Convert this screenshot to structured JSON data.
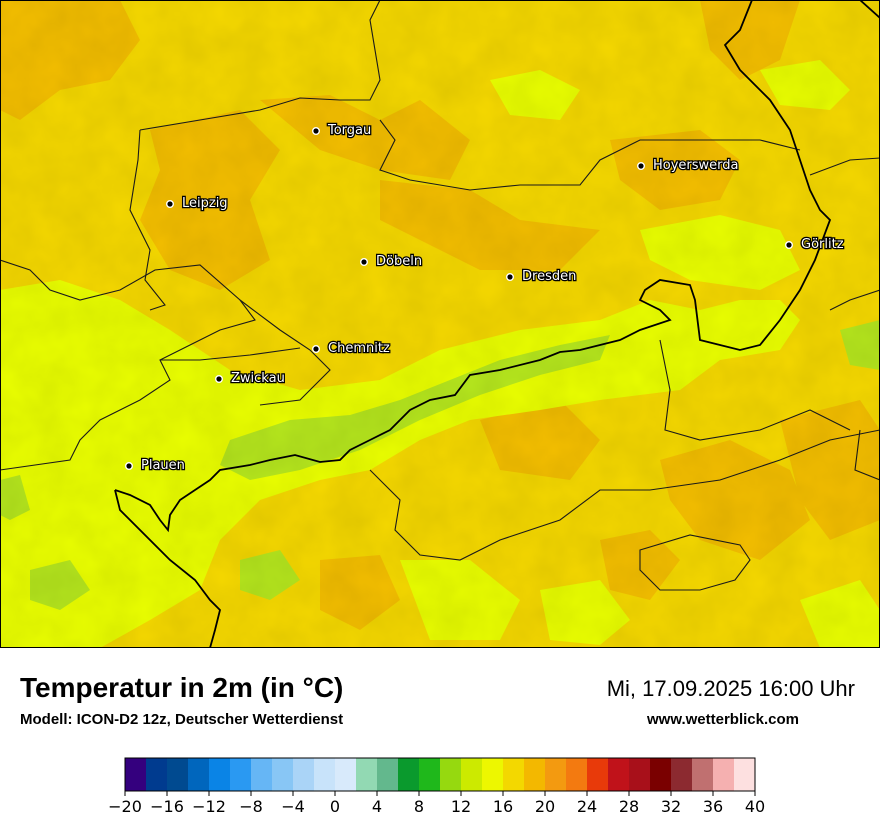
{
  "header": {
    "title": "Temperatur in 2m (in °C)",
    "model": "Modell: ICON-D2 12z, Deutscher Wetterdienst",
    "datetime": "Mi, 17.09.2025 16:00 Uhr",
    "website": "www.wetterblick.com"
  },
  "map": {
    "cities": [
      {
        "name": "Torgau"
      },
      {
        "name": "Hoyerswerda"
      },
      {
        "name": "Leipzig"
      },
      {
        "name": "Görlitz"
      },
      {
        "name": "Döbeln"
      },
      {
        "name": "Dresden"
      },
      {
        "name": "Chemnitz"
      },
      {
        "name": "Zwickau"
      },
      {
        "name": "Plauen"
      }
    ],
    "colors": {
      "dominant": "#f5d800",
      "warm": "#f3be00",
      "cool": "#eaff00",
      "coolest": "#b5e61d"
    }
  },
  "legend": {
    "min": -20,
    "max": 40,
    "ticks": [
      "−20",
      "−16",
      "−12",
      "−8",
      "−4",
      "0",
      "4",
      "8",
      "12",
      "16",
      "20",
      "24",
      "28",
      "32",
      "36",
      "40"
    ],
    "colors": [
      "#34007e",
      "#003b8f",
      "#004a90",
      "#0066bd",
      "#0a84e6",
      "#2a99f2",
      "#66b6f5",
      "#88c6f5",
      "#aad4f7",
      "#c8e3fa",
      "#d8eafb",
      "#92d9b3",
      "#63b88d",
      "#0a9a2d",
      "#1fb81b",
      "#96d90f",
      "#ccea00",
      "#edf700",
      "#f3d800",
      "#f3b800",
      "#f39a10",
      "#f37a10",
      "#e83a0a",
      "#c0121a",
      "#a8101a",
      "#7a0000",
      "#8c2a30",
      "#c07070",
      "#f5b0b0",
      "#fde0e0"
    ]
  }
}
